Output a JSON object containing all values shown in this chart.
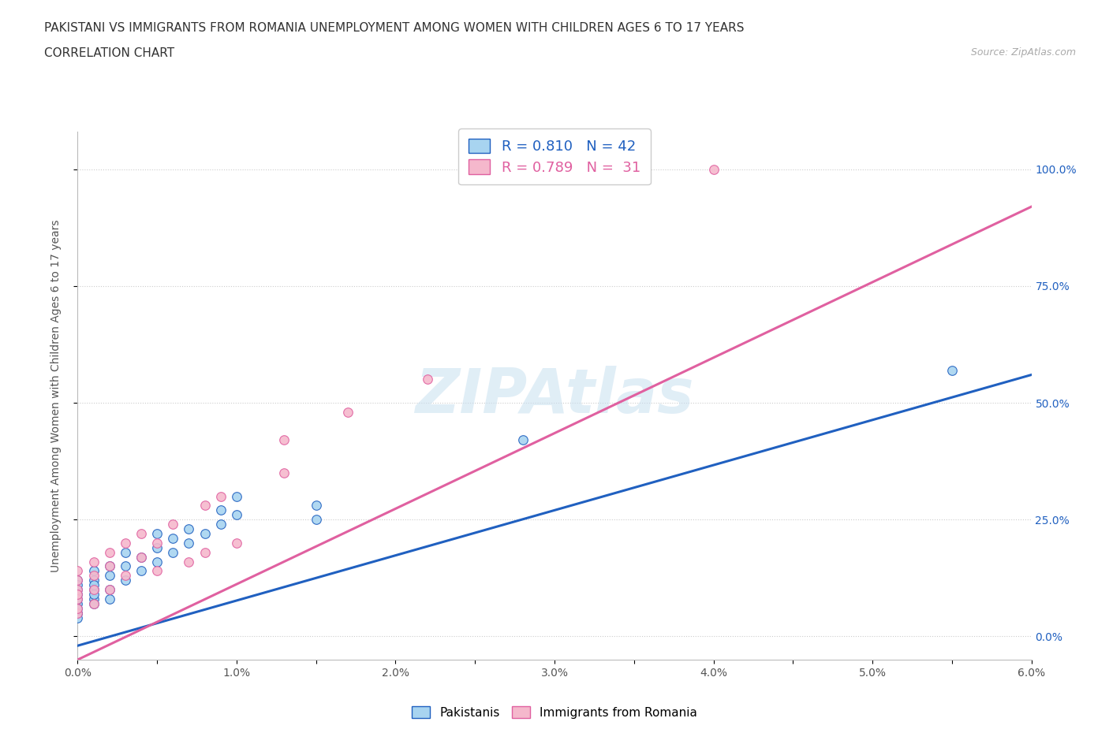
{
  "title_line1": "PAKISTANI VS IMMIGRANTS FROM ROMANIA UNEMPLOYMENT AMONG WOMEN WITH CHILDREN AGES 6 TO 17 YEARS",
  "title_line2": "CORRELATION CHART",
  "source_text": "Source: ZipAtlas.com",
  "ylabel": "Unemployment Among Women with Children Ages 6 to 17 years",
  "watermark": "ZIPAtlas",
  "xmin": 0.0,
  "xmax": 0.06,
  "ymin": -0.05,
  "ymax": 1.08,
  "ytick_vals": [
    0.0,
    0.25,
    0.5,
    0.75,
    1.0
  ],
  "ytick_labels": [
    "0.0%",
    "25.0%",
    "50.0%",
    "75.0%",
    "100.0%"
  ],
  "xtick_positions": [
    0.0,
    0.005,
    0.01,
    0.015,
    0.02,
    0.025,
    0.03,
    0.035,
    0.04,
    0.045,
    0.05,
    0.055,
    0.06
  ],
  "xtick_labels": [
    "0.0%",
    "",
    "1.0%",
    "",
    "2.0%",
    "",
    "3.0%",
    "",
    "4.0%",
    "",
    "5.0%",
    "",
    "6.0%"
  ],
  "pakistani_color": "#a8d4f0",
  "romanian_color": "#f5b8cc",
  "line_pakistani_color": "#2060c0",
  "line_romanian_color": "#e060a0",
  "R_pakistani": 0.81,
  "N_pakistani": 42,
  "R_romanian": 0.789,
  "N_romanian": 31,
  "pak_line_x0": 0.0,
  "pak_line_y0": -0.02,
  "pak_line_x1": 0.06,
  "pak_line_y1": 0.56,
  "rom_line_x0": 0.0,
  "rom_line_y0": -0.05,
  "rom_line_x1": 0.06,
  "rom_line_y1": 0.92,
  "pakistani_scatter_x": [
    0.0,
    0.0,
    0.0,
    0.0,
    0.0,
    0.0,
    0.0,
    0.0,
    0.0,
    0.0,
    0.001,
    0.001,
    0.001,
    0.001,
    0.001,
    0.001,
    0.001,
    0.002,
    0.002,
    0.002,
    0.002,
    0.003,
    0.003,
    0.003,
    0.004,
    0.004,
    0.005,
    0.005,
    0.005,
    0.006,
    0.006,
    0.007,
    0.007,
    0.008,
    0.009,
    0.009,
    0.01,
    0.01,
    0.015,
    0.015,
    0.028,
    0.055
  ],
  "pakistani_scatter_y": [
    0.05,
    0.07,
    0.08,
    0.1,
    0.12,
    0.05,
    0.06,
    0.09,
    0.11,
    0.04,
    0.08,
    0.1,
    0.12,
    0.14,
    0.07,
    0.09,
    0.11,
    0.1,
    0.13,
    0.15,
    0.08,
    0.12,
    0.15,
    0.18,
    0.14,
    0.17,
    0.16,
    0.19,
    0.22,
    0.18,
    0.21,
    0.2,
    0.23,
    0.22,
    0.24,
    0.27,
    0.26,
    0.3,
    0.25,
    0.28,
    0.42,
    0.57
  ],
  "romanian_scatter_x": [
    0.0,
    0.0,
    0.0,
    0.0,
    0.0,
    0.0,
    0.0,
    0.001,
    0.001,
    0.001,
    0.001,
    0.002,
    0.002,
    0.002,
    0.003,
    0.003,
    0.004,
    0.004,
    0.005,
    0.005,
    0.006,
    0.007,
    0.008,
    0.008,
    0.009,
    0.01,
    0.013,
    0.013,
    0.017,
    0.022,
    0.04
  ],
  "romanian_scatter_y": [
    0.05,
    0.08,
    0.1,
    0.12,
    0.14,
    0.06,
    0.09,
    0.1,
    0.13,
    0.16,
    0.07,
    0.15,
    0.18,
    0.1,
    0.2,
    0.13,
    0.22,
    0.17,
    0.2,
    0.14,
    0.24,
    0.16,
    0.28,
    0.18,
    0.3,
    0.2,
    0.35,
    0.42,
    0.48,
    0.55,
    1.0
  ],
  "title_fontsize": 11,
  "axis_label_fontsize": 10,
  "tick_fontsize": 10,
  "legend_fontsize": 13
}
